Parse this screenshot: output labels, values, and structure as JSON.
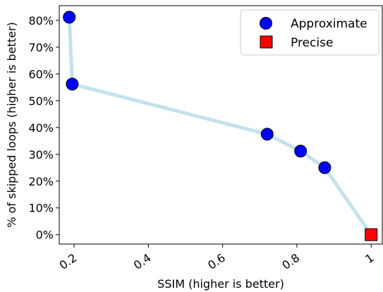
{
  "chart_data": {
    "type": "scatter",
    "xlabel": "SSIM (higher is better)",
    "ylabel": "% of skipped loops (higher is better)",
    "xlim": [
      0.16,
      1.03
    ],
    "ylim": [
      -3.5,
      85.5
    ],
    "xticks": [
      0.2,
      0.4,
      0.6,
      0.8,
      1.0
    ],
    "xtick_labels": [
      "0.2",
      "0.4",
      "0.6",
      "0.8",
      "1"
    ],
    "yticks": [
      0,
      10,
      20,
      30,
      40,
      50,
      60,
      70,
      80
    ],
    "ytick_labels": [
      "0%",
      "10%",
      "20%",
      "30%",
      "40%",
      "50%",
      "60%",
      "70%",
      "80%"
    ],
    "grid": false,
    "legend_position": "top-right",
    "frontier_color": "#add8e6",
    "series": [
      {
        "name": "Approximate",
        "marker": "circle",
        "color": "#0000ff",
        "x": [
          0.187,
          0.195,
          0.72,
          0.81,
          0.875
        ],
        "y": [
          81.2,
          56.2,
          37.5,
          31.2,
          25.0
        ]
      },
      {
        "name": "Precise",
        "marker": "square",
        "color": "#ff0000",
        "x": [
          1.0
        ],
        "y": [
          0.0
        ]
      }
    ]
  }
}
